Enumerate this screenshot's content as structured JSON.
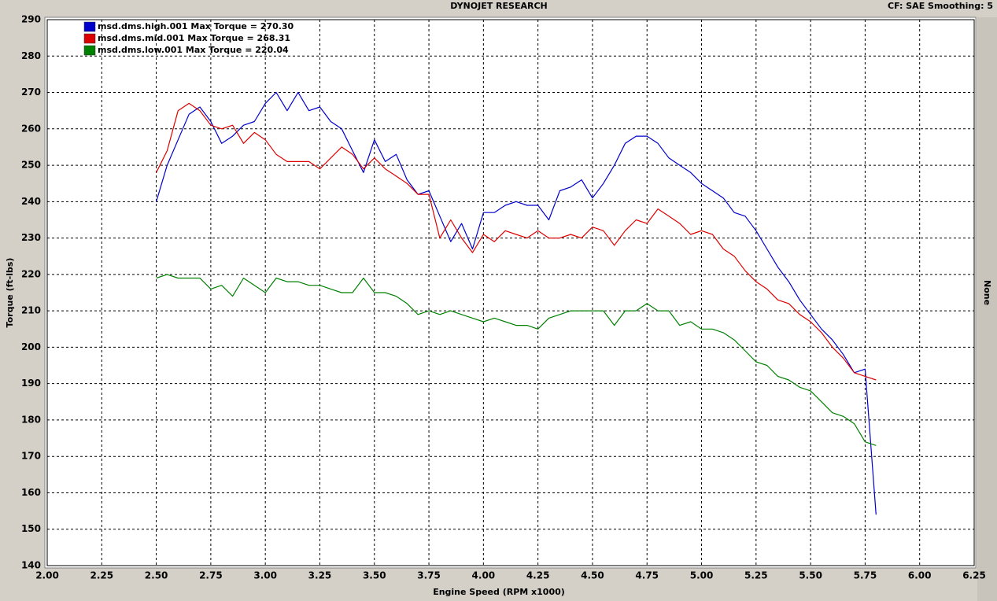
{
  "chart_data": {
    "type": "line",
    "title": "DYNOJET RESEARCH",
    "subtitle": "CF: SAE  Smoothing: 5",
    "side_label": "None",
    "xlabel": "Engine Speed (RPM x1000)",
    "ylabel": "Torque (ft-lbs)",
    "xlim": [
      2.0,
      6.25
    ],
    "ylim": [
      140,
      290
    ],
    "grid": true,
    "legend": "upper left",
    "xticks": [
      {
        "value": 2.0,
        "label": "2.00"
      },
      2.25,
      {
        "value": 2.5,
        "label": "2.50"
      },
      2.75,
      {
        "value": 3.0,
        "label": "3.00"
      },
      3.25,
      {
        "value": 3.5,
        "label": "3.50"
      },
      3.75,
      {
        "value": 4.0,
        "label": "4.00"
      },
      4.25,
      {
        "value": 4.5,
        "label": "4.50"
      },
      4.75,
      {
        "value": 5.0,
        "label": "5.00"
      },
      5.25,
      {
        "value": 5.5,
        "label": "5.50"
      },
      5.75,
      {
        "value": 6.0,
        "label": "6.00"
      },
      6.25
    ],
    "yticks": [
      140,
      150,
      160,
      170,
      180,
      190,
      200,
      210,
      220,
      230,
      240,
      250,
      260,
      270,
      280,
      290
    ],
    "x": [
      2.5,
      2.55,
      2.6,
      2.65,
      2.7,
      2.75,
      2.8,
      2.85,
      2.9,
      2.95,
      3.0,
      3.05,
      3.1,
      3.15,
      3.2,
      3.25,
      3.3,
      3.35,
      3.4,
      3.45,
      3.5,
      3.55,
      3.6,
      3.65,
      3.7,
      3.75,
      3.8,
      3.85,
      3.9,
      3.95,
      4.0,
      4.05,
      4.1,
      4.15,
      4.2,
      4.25,
      4.3,
      4.35,
      4.4,
      4.45,
      4.5,
      4.55,
      4.6,
      4.65,
      4.7,
      4.75,
      4.8,
      4.85,
      4.9,
      4.95,
      5.0,
      5.05,
      5.1,
      5.15,
      5.2,
      5.25,
      5.3,
      5.35,
      5.4,
      5.45,
      5.5,
      5.55,
      5.6,
      5.65,
      5.7,
      5.75,
      5.8
    ],
    "series": [
      {
        "name": "msd.dms.high.001 Max Torque = 270.30",
        "color": "#0000cc",
        "values": [
          240,
          250,
          257,
          264,
          266,
          262,
          256,
          258,
          261,
          262,
          267,
          270,
          265,
          270,
          265,
          266,
          262,
          260,
          254,
          248,
          257,
          251,
          253,
          246,
          242,
          243,
          236,
          229,
          234,
          227,
          237,
          237,
          239,
          240,
          239,
          239,
          235,
          243,
          244,
          246,
          241,
          245,
          250,
          256,
          258,
          258,
          256,
          252,
          250,
          248,
          245,
          243,
          241,
          237,
          236,
          232,
          227,
          222,
          218,
          213,
          209,
          205,
          202,
          198,
          193,
          194,
          154
        ]
      },
      {
        "name": "msd.dms.mid.001 Max Torque = 268.31",
        "color": "#dd0000",
        "values": [
          248,
          254,
          265,
          267,
          265,
          261,
          260,
          261,
          256,
          259,
          257,
          253,
          251,
          251,
          251,
          249,
          252,
          255,
          253,
          249,
          252,
          249,
          247,
          245,
          242,
          242,
          230,
          235,
          230,
          226,
          231,
          229,
          232,
          231,
          230,
          232,
          230,
          230,
          231,
          230,
          233,
          232,
          228,
          232,
          235,
          234,
          238,
          236,
          234,
          231,
          232,
          231,
          227,
          225,
          221,
          218,
          216,
          213,
          212,
          209,
          207,
          204,
          200,
          197,
          193,
          192,
          191
        ]
      },
      {
        "name": "msd.dms.low.001 Max Torque = 220.04",
        "color": "#008000",
        "values": [
          219,
          220,
          219,
          219,
          219,
          216,
          217,
          214,
          219,
          217,
          215,
          219,
          218,
          218,
          217,
          217,
          216,
          215,
          215,
          219,
          215,
          215,
          214,
          212,
          209,
          210,
          209,
          210,
          209,
          208,
          207,
          208,
          207,
          206,
          206,
          205,
          208,
          209,
          210,
          210,
          210,
          210,
          206,
          210,
          210,
          212,
          210,
          210,
          206,
          207,
          205,
          205,
          204,
          202,
          199,
          196,
          195,
          192,
          191,
          189,
          188,
          185,
          182,
          181,
          179,
          174,
          173
        ]
      }
    ]
  }
}
